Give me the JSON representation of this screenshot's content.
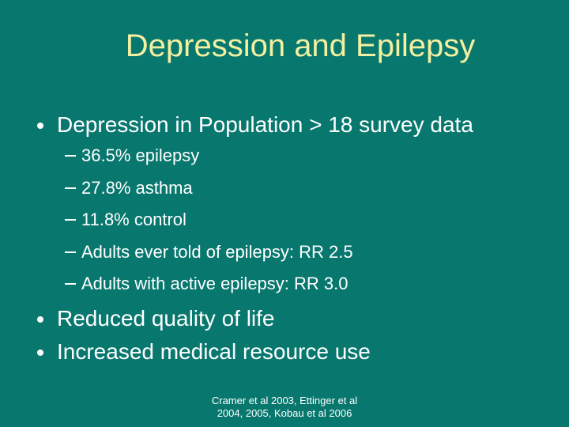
{
  "title": "Depression and Epilepsy",
  "bullets": [
    {
      "text": "Depression in Population > 18 survey data",
      "sub": [
        "36.5% epilepsy",
        "27.8% asthma",
        "11.8% control",
        "Adults ever told of epilepsy: RR 2.5",
        "Adults with active epilepsy: RR 3.0"
      ]
    },
    {
      "text": "Reduced quality of life"
    },
    {
      "text": "Increased medical resource use"
    }
  ],
  "footer": [
    "Cramer et al 2003, Ettinger et al",
    "2004, 2005, Kobau et al 2006"
  ]
}
